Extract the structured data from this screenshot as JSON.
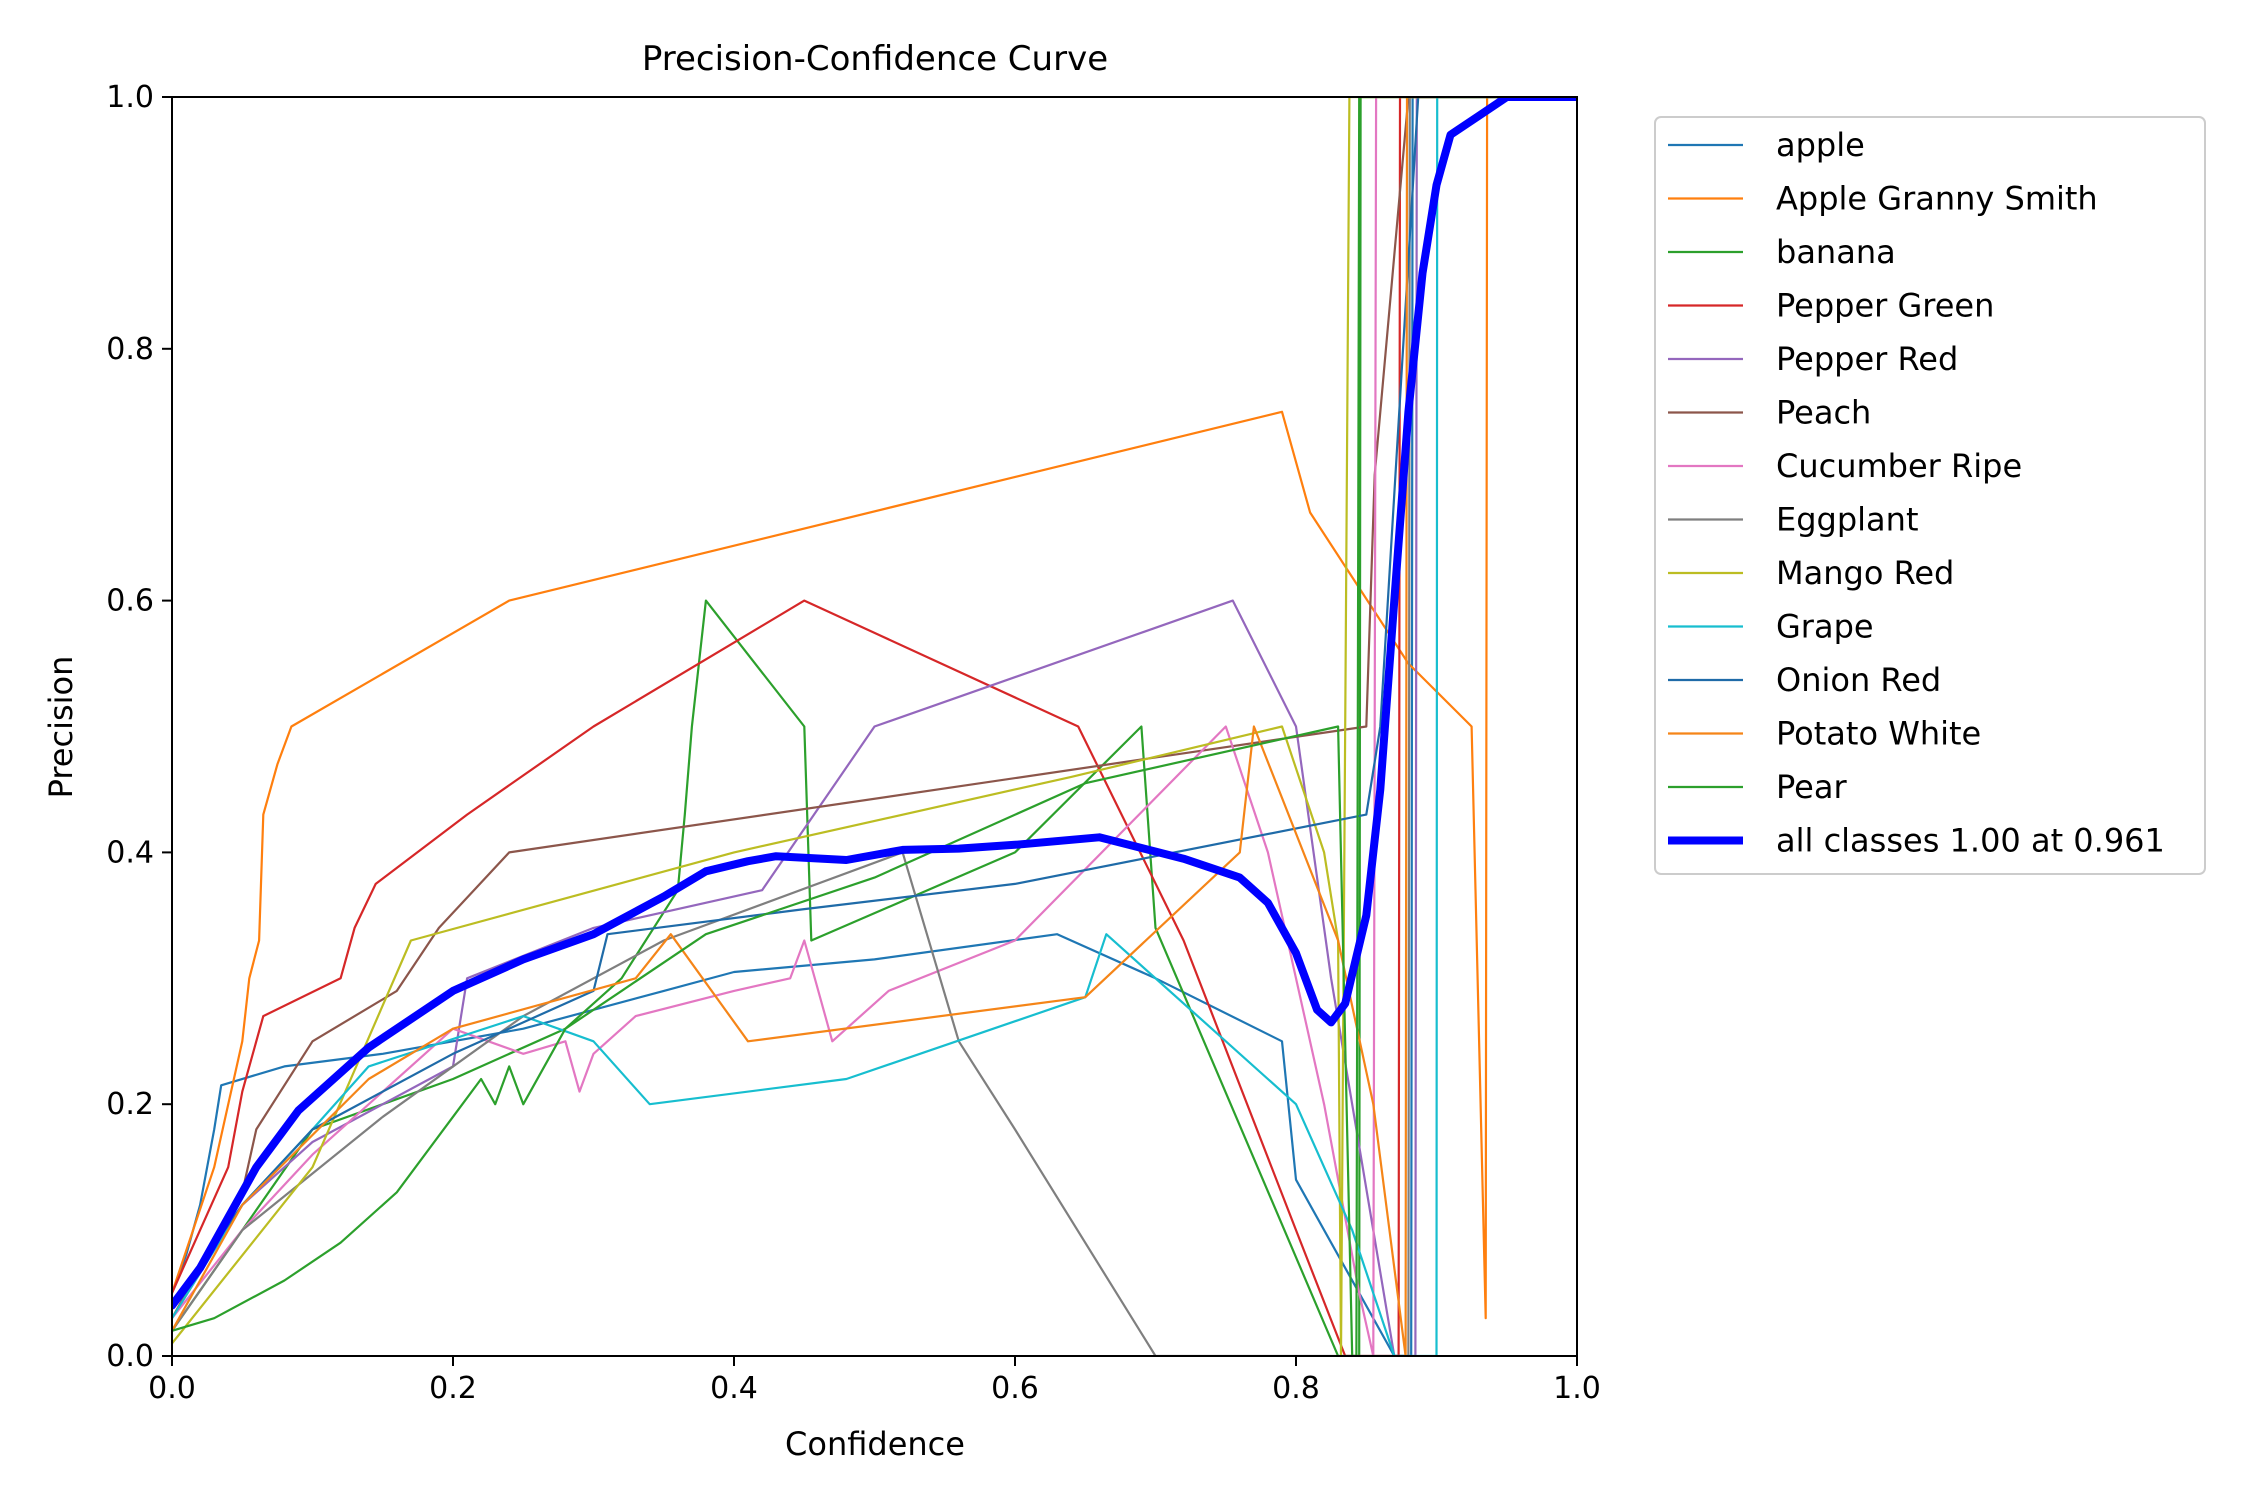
{
  "chart_data": {
    "type": "line",
    "title": "Precision-Confidence Curve",
    "xlabel": "Confidence",
    "ylabel": "Precision",
    "xlim": [
      0,
      1
    ],
    "ylim": [
      0,
      1
    ],
    "xticks": [
      "0.0",
      "0.2",
      "0.4",
      "0.6",
      "0.8",
      "1.0"
    ],
    "yticks": [
      "0.0",
      "0.2",
      "0.4",
      "0.6",
      "0.8",
      "1.0"
    ],
    "grid": false,
    "legend_position": "outside-right",
    "series": [
      {
        "name": "apple",
        "color": "#1f77b4",
        "values": [
          [
            0,
            0.05
          ],
          [
            0.01,
            0.08
          ],
          [
            0.02,
            0.12
          ],
          [
            0.03,
            0.18
          ],
          [
            0.035,
            0.215
          ],
          [
            0.08,
            0.23
          ],
          [
            0.15,
            0.24
          ],
          [
            0.25,
            0.26
          ],
          [
            0.35,
            0.29
          ],
          [
            0.4,
            0.305
          ],
          [
            0.5,
            0.315
          ],
          [
            0.63,
            0.335
          ],
          [
            0.7,
            0.3
          ],
          [
            0.79,
            0.25
          ],
          [
            0.8,
            0.14
          ],
          [
            0.87,
            0.0
          ],
          [
            0.882,
            0.0
          ],
          [
            0.883,
            1.0
          ],
          [
            1.0,
            1.0
          ]
        ]
      },
      {
        "name": "Apple Granny Smith",
        "color": "#ff7f0e",
        "values": [
          [
            0,
            0.05
          ],
          [
            0.03,
            0.15
          ],
          [
            0.05,
            0.25
          ],
          [
            0.055,
            0.3
          ],
          [
            0.062,
            0.33
          ],
          [
            0.065,
            0.43
          ],
          [
            0.075,
            0.47
          ],
          [
            0.085,
            0.5
          ],
          [
            0.24,
            0.6
          ],
          [
            0.79,
            0.75
          ],
          [
            0.81,
            0.67
          ],
          [
            0.88,
            0.55
          ],
          [
            0.925,
            0.5
          ],
          [
            0.935,
            0.03
          ],
          [
            0.936,
            1.0
          ],
          [
            1.0,
            1.0
          ]
        ]
      },
      {
        "name": "banana",
        "color": "#2ca02c",
        "values": [
          [
            0,
            0.02
          ],
          [
            0.05,
            0.1
          ],
          [
            0.1,
            0.18
          ],
          [
            0.2,
            0.22
          ],
          [
            0.28,
            0.26
          ],
          [
            0.32,
            0.3
          ],
          [
            0.36,
            0.37
          ],
          [
            0.365,
            0.43
          ],
          [
            0.37,
            0.5
          ],
          [
            0.38,
            0.6
          ],
          [
            0.45,
            0.5
          ],
          [
            0.455,
            0.33
          ],
          [
            0.6,
            0.4
          ],
          [
            0.69,
            0.5
          ],
          [
            0.7,
            0.34
          ],
          [
            0.83,
            0.0
          ],
          [
            0.845,
            0.0
          ],
          [
            0.846,
            1.0
          ],
          [
            1.0,
            1.0
          ]
        ]
      },
      {
        "name": "Pepper Green",
        "color": "#d62728",
        "values": [
          [
            0,
            0.05
          ],
          [
            0.02,
            0.1
          ],
          [
            0.04,
            0.15
          ],
          [
            0.05,
            0.21
          ],
          [
            0.065,
            0.27
          ],
          [
            0.12,
            0.3
          ],
          [
            0.13,
            0.34
          ],
          [
            0.145,
            0.375
          ],
          [
            0.21,
            0.43
          ],
          [
            0.3,
            0.5
          ],
          [
            0.45,
            0.6
          ],
          [
            0.645,
            0.5
          ],
          [
            0.72,
            0.33
          ],
          [
            0.8,
            0.1
          ],
          [
            0.835,
            0.0
          ],
          [
            0.873,
            0.0
          ],
          [
            0.874,
            1.0
          ],
          [
            1.0,
            1.0
          ]
        ]
      },
      {
        "name": "Pepper Red",
        "color": "#9467bd",
        "values": [
          [
            0,
            0.03
          ],
          [
            0.05,
            0.12
          ],
          [
            0.1,
            0.17
          ],
          [
            0.2,
            0.23
          ],
          [
            0.21,
            0.3
          ],
          [
            0.3,
            0.34
          ],
          [
            0.42,
            0.37
          ],
          [
            0.5,
            0.5
          ],
          [
            0.755,
            0.6
          ],
          [
            0.8,
            0.5
          ],
          [
            0.825,
            0.3
          ],
          [
            0.87,
            0.0
          ],
          [
            0.885,
            0.0
          ],
          [
            0.886,
            1.0
          ],
          [
            1.0,
            1.0
          ]
        ]
      },
      {
        "name": "Peach",
        "color": "#8c564b",
        "values": [
          [
            0,
            0.03
          ],
          [
            0.05,
            0.13
          ],
          [
            0.06,
            0.18
          ],
          [
            0.1,
            0.25
          ],
          [
            0.16,
            0.29
          ],
          [
            0.19,
            0.34
          ],
          [
            0.24,
            0.4
          ],
          [
            0.85,
            0.5
          ],
          [
            0.856,
            0.7
          ],
          [
            0.88,
            1.0
          ],
          [
            1.0,
            1.0
          ]
        ]
      },
      {
        "name": "Cucumber Ripe",
        "color": "#e377c2",
        "values": [
          [
            0,
            0.03
          ],
          [
            0.05,
            0.1
          ],
          [
            0.1,
            0.16
          ],
          [
            0.2,
            0.26
          ],
          [
            0.25,
            0.24
          ],
          [
            0.28,
            0.25
          ],
          [
            0.29,
            0.21
          ],
          [
            0.3,
            0.24
          ],
          [
            0.33,
            0.27
          ],
          [
            0.4,
            0.29
          ],
          [
            0.44,
            0.3
          ],
          [
            0.45,
            0.33
          ],
          [
            0.47,
            0.25
          ],
          [
            0.51,
            0.29
          ],
          [
            0.6,
            0.33
          ],
          [
            0.75,
            0.5
          ],
          [
            0.78,
            0.4
          ],
          [
            0.82,
            0.2
          ],
          [
            0.845,
            0.05
          ],
          [
            0.855,
            0.0
          ],
          [
            0.857,
            1.0
          ],
          [
            1.0,
            1.0
          ]
        ]
      },
      {
        "name": "Eggplant",
        "color": "#7f7f7f",
        "values": [
          [
            0,
            0.02
          ],
          [
            0.05,
            0.1
          ],
          [
            0.15,
            0.19
          ],
          [
            0.25,
            0.27
          ],
          [
            0.35,
            0.33
          ],
          [
            0.52,
            0.4
          ],
          [
            0.56,
            0.25
          ],
          [
            0.6,
            0.18
          ],
          [
            0.7,
            0.0
          ],
          [
            0.82,
            0.0
          ],
          [
            0.88,
            0.0
          ],
          [
            0.881,
            1.0
          ],
          [
            1.0,
            1.0
          ]
        ]
      },
      {
        "name": "Mango Red",
        "color": "#bcbd22",
        "values": [
          [
            0,
            0.01
          ],
          [
            0.05,
            0.08
          ],
          [
            0.1,
            0.15
          ],
          [
            0.17,
            0.33
          ],
          [
            0.4,
            0.4
          ],
          [
            0.64,
            0.46
          ],
          [
            0.79,
            0.5
          ],
          [
            0.82,
            0.4
          ],
          [
            0.83,
            0.33
          ],
          [
            0.832,
            0.0
          ],
          [
            0.838,
            1.0
          ],
          [
            1.0,
            1.0
          ]
        ]
      },
      {
        "name": "Grape",
        "color": "#17becf",
        "values": [
          [
            0,
            0.03
          ],
          [
            0.05,
            0.12
          ],
          [
            0.1,
            0.18
          ],
          [
            0.14,
            0.23
          ],
          [
            0.25,
            0.27
          ],
          [
            0.3,
            0.25
          ],
          [
            0.34,
            0.2
          ],
          [
            0.48,
            0.22
          ],
          [
            0.65,
            0.285
          ],
          [
            0.665,
            0.335
          ],
          [
            0.8,
            0.2
          ],
          [
            0.84,
            0.1
          ],
          [
            0.87,
            0.0
          ],
          [
            0.9,
            0.0
          ],
          [
            0.9005,
            1.0
          ],
          [
            1.0,
            1.0
          ]
        ]
      },
      {
        "name": "Onion Red",
        "color": "#1f6ba8",
        "values": [
          [
            0,
            0.04
          ],
          [
            0.05,
            0.12
          ],
          [
            0.1,
            0.18
          ],
          [
            0.2,
            0.24
          ],
          [
            0.3,
            0.29
          ],
          [
            0.31,
            0.335
          ],
          [
            0.45,
            0.355
          ],
          [
            0.6,
            0.375
          ],
          [
            0.85,
            0.43
          ],
          [
            0.86,
            0.5
          ],
          [
            0.887,
            1.0
          ],
          [
            1.0,
            1.0
          ]
        ]
      },
      {
        "name": "Potato White",
        "color": "#f58518",
        "values": [
          [
            0,
            0.02
          ],
          [
            0.05,
            0.12
          ],
          [
            0.14,
            0.22
          ],
          [
            0.2,
            0.26
          ],
          [
            0.33,
            0.3
          ],
          [
            0.355,
            0.335
          ],
          [
            0.41,
            0.25
          ],
          [
            0.65,
            0.285
          ],
          [
            0.76,
            0.4
          ],
          [
            0.77,
            0.5
          ],
          [
            0.83,
            0.33
          ],
          [
            0.855,
            0.2
          ],
          [
            0.878,
            0.0
          ],
          [
            0.879,
            1.0
          ],
          [
            1.0,
            1.0
          ]
        ]
      },
      {
        "name": "Pear",
        "color": "#2ca02c",
        "values": [
          [
            0,
            0.02
          ],
          [
            0.03,
            0.03
          ],
          [
            0.08,
            0.06
          ],
          [
            0.12,
            0.09
          ],
          [
            0.16,
            0.13
          ],
          [
            0.2,
            0.19
          ],
          [
            0.22,
            0.22
          ],
          [
            0.23,
            0.2
          ],
          [
            0.24,
            0.23
          ],
          [
            0.25,
            0.2
          ],
          [
            0.28,
            0.26
          ],
          [
            0.32,
            0.29
          ],
          [
            0.38,
            0.335
          ],
          [
            0.5,
            0.38
          ],
          [
            0.65,
            0.455
          ],
          [
            0.83,
            0.5
          ],
          [
            0.84,
            0.0
          ],
          [
            0.843,
            0.0
          ],
          [
            0.845,
            1.0
          ],
          [
            1.0,
            1.0
          ]
        ]
      },
      {
        "name": "all classes 1.00 at 0.961",
        "color": "#0000ff",
        "bold": true,
        "values": [
          [
            0,
            0.04
          ],
          [
            0.02,
            0.07
          ],
          [
            0.04,
            0.11
          ],
          [
            0.06,
            0.15
          ],
          [
            0.09,
            0.195
          ],
          [
            0.14,
            0.245
          ],
          [
            0.2,
            0.29
          ],
          [
            0.25,
            0.315
          ],
          [
            0.3,
            0.335
          ],
          [
            0.35,
            0.365
          ],
          [
            0.38,
            0.385
          ],
          [
            0.41,
            0.393
          ],
          [
            0.43,
            0.397
          ],
          [
            0.48,
            0.394
          ],
          [
            0.52,
            0.402
          ],
          [
            0.56,
            0.403
          ],
          [
            0.6,
            0.406
          ],
          [
            0.66,
            0.412
          ],
          [
            0.72,
            0.395
          ],
          [
            0.76,
            0.38
          ],
          [
            0.78,
            0.36
          ],
          [
            0.8,
            0.32
          ],
          [
            0.815,
            0.275
          ],
          [
            0.825,
            0.265
          ],
          [
            0.835,
            0.28
          ],
          [
            0.85,
            0.35
          ],
          [
            0.86,
            0.45
          ],
          [
            0.87,
            0.6
          ],
          [
            0.88,
            0.75
          ],
          [
            0.89,
            0.86
          ],
          [
            0.9,
            0.93
          ],
          [
            0.91,
            0.97
          ],
          [
            0.93,
            0.985
          ],
          [
            0.95,
            1.0
          ],
          [
            1.0,
            1.0
          ]
        ]
      }
    ]
  }
}
